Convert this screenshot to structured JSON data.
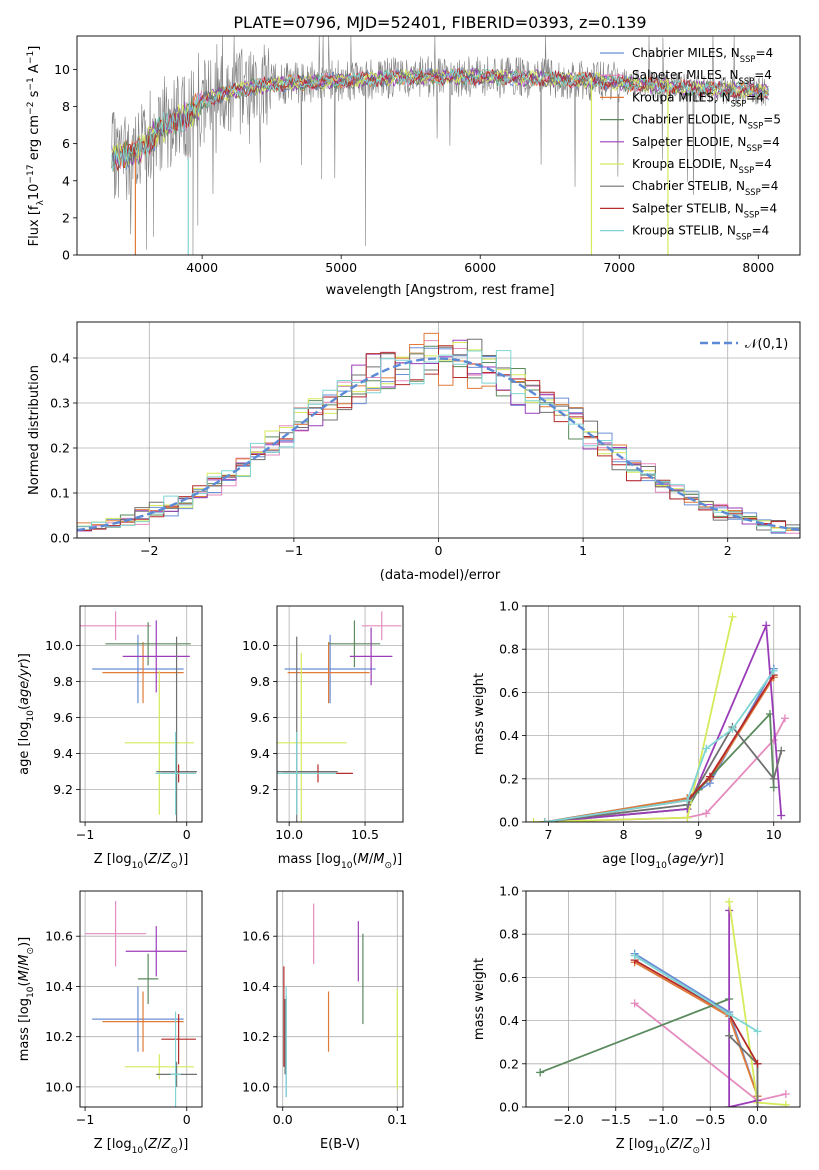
{
  "title": "PLATE=0796, MJD=52401, FIBERID=0393, z=0.139",
  "colors": {
    "Chabrier MILES": "#6b8fd6",
    "Salpeter MILES": "#e58bbf",
    "Kroupa MILES": "#e07b39",
    "Chabrier ELODIE": "#5a8a5e",
    "Salpeter ELODIE": "#9b3db8",
    "Kroupa ELODIE": "#d6ea5a",
    "Chabrier STELIB": "#707070",
    "Salpeter STELIB": "#b52a2a",
    "Kroupa STELIB": "#7fd4d4"
  },
  "chart_data": [
    {
      "id": "spectrum",
      "type": "line",
      "xlabel": "wavelength [Angstrom, rest frame]",
      "ylabel": "Flux [f_λ10^-17 erg cm^-2 s^-1 A^-1]",
      "xlim": [
        3100,
        8300
      ],
      "ylim": [
        0,
        11.8
      ],
      "xticks": [
        4000,
        5000,
        6000,
        7000,
        8000
      ],
      "yticks": [
        0,
        2,
        4,
        6,
        8,
        10
      ],
      "legend_position": "right",
      "legend": [
        {
          "name": "Chabrier MILES",
          "nssp": "4"
        },
        {
          "name": "Salpeter MILES",
          "nssp": "4"
        },
        {
          "name": "Kroupa MILES",
          "nssp": "4"
        },
        {
          "name": "Chabrier ELODIE",
          "nssp": "5"
        },
        {
          "name": "Salpeter ELODIE",
          "nssp": "4"
        },
        {
          "name": "Kroupa ELODIE",
          "nssp": "4"
        },
        {
          "name": "Chabrier STELIB",
          "nssp": "4"
        },
        {
          "name": "Salpeter STELIB",
          "nssp": "4"
        },
        {
          "name": "Kroupa STELIB",
          "nssp": "4"
        }
      ],
      "data_envelope": {
        "x": [
          3350,
          3500,
          3600,
          3700,
          3800,
          3900,
          4000,
          4200,
          4500,
          5000,
          5500,
          6000,
          6500,
          7000,
          7500,
          8050
        ],
        "y": [
          5.3,
          5.4,
          6.0,
          6.8,
          7.2,
          7.5,
          8.3,
          8.8,
          9.2,
          9.4,
          9.6,
          9.6,
          9.5,
          9.3,
          9.0,
          8.8
        ]
      },
      "model_cut_x": [
        3520,
        3900,
        6800,
        7350
      ]
    },
    {
      "id": "residuals",
      "type": "line",
      "xlabel": "(data-model)/error",
      "ylabel": "Normed distribution",
      "xlim": [
        -2.5,
        2.5
      ],
      "ylim": [
        0,
        0.48
      ],
      "xticks": [
        -2,
        -1,
        0,
        1,
        2
      ],
      "yticks": [
        0,
        0.1,
        0.2,
        0.3,
        0.4
      ],
      "legend_position": "top-right",
      "reference_curve": "𝒩(0,1)",
      "hist_bin_width": 0.1
    },
    {
      "id": "age-vs-Z",
      "type": "scatter",
      "xlabel": "Z [log10(Z/Z⊙)]",
      "ylabel": "age  [log10(age/yr)]",
      "xlim": [
        -1.05,
        0.15
      ],
      "ylim": [
        9.02,
        10.22
      ],
      "xticks": [
        -1,
        0
      ],
      "yticks": [
        9.2,
        9.4,
        9.6,
        9.8,
        10.0
      ],
      "points": [
        {
          "series": "Chabrier MILES",
          "x": -0.48,
          "y": 9.87,
          "xerr": 0.45,
          "yerr": 0.19
        },
        {
          "series": "Salpeter MILES",
          "x": -0.7,
          "y": 10.11,
          "xerr": 0.35,
          "yerr": 0.08
        },
        {
          "series": "Kroupa MILES",
          "x": -0.43,
          "y": 9.85,
          "xerr": 0.4,
          "yerr": 0.17
        },
        {
          "series": "Chabrier ELODIE",
          "x": -0.38,
          "y": 10.01,
          "xerr": 0.42,
          "yerr": 0.12
        },
        {
          "series": "Salpeter ELODIE",
          "x": -0.3,
          "y": 9.94,
          "xerr": 0.33,
          "yerr": 0.2
        },
        {
          "series": "Kroupa ELODIE",
          "x": -0.27,
          "y": 9.46,
          "xerr": 0.34,
          "yerr": 0.4
        },
        {
          "series": "Chabrier STELIB",
          "x": -0.1,
          "y": 9.3,
          "xerr": 0.2,
          "yerr": 0.75
        },
        {
          "series": "Salpeter STELIB",
          "x": -0.08,
          "y": 9.29,
          "xerr": 0.17,
          "yerr": 0.05
        },
        {
          "series": "Kroupa STELIB",
          "x": -0.11,
          "y": 9.29,
          "xerr": 0.2,
          "yerr": 0.23
        }
      ]
    },
    {
      "id": "age-vs-mass",
      "type": "scatter",
      "xlabel": "mass [log10(M/M⊙)]",
      "ylabel": "",
      "xlim": [
        9.92,
        10.75
      ],
      "ylim": [
        9.02,
        10.22
      ],
      "xticks": [
        10.0,
        10.5
      ],
      "yticks": [
        9.2,
        9.4,
        9.6,
        9.8,
        10.0
      ],
      "points": [
        {
          "series": "Chabrier MILES",
          "x": 10.27,
          "y": 9.87,
          "xerr": 0.3,
          "yerr": 0.19
        },
        {
          "series": "Salpeter MILES",
          "x": 10.61,
          "y": 10.11,
          "xerr": 0.13,
          "yerr": 0.08
        },
        {
          "series": "Kroupa MILES",
          "x": 10.26,
          "y": 9.85,
          "xerr": 0.27,
          "yerr": 0.17
        },
        {
          "series": "Chabrier ELODIE",
          "x": 10.43,
          "y": 10.01,
          "xerr": 0.17,
          "yerr": 0.13
        },
        {
          "series": "Salpeter ELODIE",
          "x": 10.54,
          "y": 9.94,
          "xerr": 0.14,
          "yerr": 0.16
        },
        {
          "series": "Kroupa ELODIE",
          "x": 10.08,
          "y": 9.46,
          "xerr": 0.3,
          "yerr": 0.5
        },
        {
          "series": "Chabrier STELIB",
          "x": 10.05,
          "y": 9.3,
          "xerr": 0.27,
          "yerr": 0.75
        },
        {
          "series": "Salpeter STELIB",
          "x": 10.19,
          "y": 9.29,
          "xerr": 0.23,
          "yerr": 0.05
        },
        {
          "series": "Kroupa STELIB",
          "x": 10.05,
          "y": 9.29,
          "xerr": 0.26,
          "yerr": 0.23
        }
      ]
    },
    {
      "id": "massweight-vs-age",
      "type": "line",
      "xlabel": "age  [log10(age/yr)]",
      "ylabel": "mass weight",
      "xlim": [
        6.7,
        10.35
      ],
      "ylim": [
        0,
        1.0
      ],
      "xticks": [
        7,
        8,
        9,
        10
      ],
      "yticks": [
        0.0,
        0.2,
        0.4,
        0.6,
        0.8,
        1.0
      ],
      "series": [
        {
          "name": "Chabrier MILES",
          "x": [
            6.95,
            8.85,
            9.15,
            10.0
          ],
          "y": [
            0.0,
            0.11,
            0.18,
            0.71
          ]
        },
        {
          "name": "Salpeter MILES",
          "x": [
            6.95,
            8.85,
            9.1,
            10.0,
            10.15
          ],
          "y": [
            0.0,
            0.02,
            0.04,
            0.38,
            0.48
          ]
        },
        {
          "name": "Kroupa MILES",
          "x": [
            6.95,
            8.85,
            9.15,
            10.0
          ],
          "y": [
            0.0,
            0.11,
            0.2,
            0.67
          ]
        },
        {
          "name": "Chabrier ELODIE",
          "x": [
            6.95,
            8.85,
            9.0,
            9.95,
            10.0
          ],
          "y": [
            0.0,
            0.06,
            0.15,
            0.5,
            0.16
          ]
        },
        {
          "name": "Salpeter ELODIE",
          "x": [
            6.95,
            8.85,
            9.9,
            10.1
          ],
          "y": [
            0.0,
            0.06,
            0.91,
            0.03
          ]
        },
        {
          "name": "Kroupa ELODIE",
          "x": [
            6.8,
            8.85,
            9.45
          ],
          "y": [
            0.0,
            0.02,
            0.95
          ]
        },
        {
          "name": "Chabrier STELIB",
          "x": [
            6.95,
            8.85,
            9.45,
            10.0,
            10.1
          ],
          "y": [
            0.0,
            0.08,
            0.44,
            0.2,
            0.33
          ]
        },
        {
          "name": "Salpeter STELIB",
          "x": [
            6.95,
            8.85,
            9.15,
            10.0
          ],
          "y": [
            0.0,
            0.1,
            0.21,
            0.68
          ]
        },
        {
          "name": "Kroupa STELIB",
          "x": [
            6.95,
            8.85,
            9.1,
            9.45,
            10.0
          ],
          "y": [
            0.0,
            0.1,
            0.34,
            0.43,
            0.7
          ]
        }
      ]
    },
    {
      "id": "mass-vs-Z",
      "type": "scatter",
      "xlabel": "Z [log10(Z/Z⊙)]",
      "ylabel": "mass [log10(M/M⊙)]",
      "xlim": [
        -1.05,
        0.15
      ],
      "ylim": [
        9.92,
        10.78
      ],
      "xticks": [
        -1,
        0
      ],
      "yticks": [
        10.0,
        10.2,
        10.4,
        10.6
      ],
      "points": [
        {
          "series": "Chabrier MILES",
          "x": -0.48,
          "y": 10.27,
          "xerr": 0.45,
          "yerr": 0.13
        },
        {
          "series": "Salpeter MILES",
          "x": -0.7,
          "y": 10.61,
          "xerr": 0.3,
          "yerr": 0.13
        },
        {
          "series": "Kroupa MILES",
          "x": -0.43,
          "y": 10.26,
          "xerr": 0.4,
          "yerr": 0.12
        },
        {
          "series": "Chabrier ELODIE",
          "x": -0.38,
          "y": 10.43,
          "xerr": 0.1,
          "yerr": 0.1
        },
        {
          "series": "Salpeter ELODIE",
          "x": -0.3,
          "y": 10.54,
          "xerr": 0.3,
          "yerr": 0.1
        },
        {
          "series": "Kroupa ELODIE",
          "x": -0.27,
          "y": 10.08,
          "xerr": 0.34,
          "yerr": 0.05
        },
        {
          "series": "Chabrier STELIB",
          "x": -0.1,
          "y": 10.05,
          "xerr": 0.2,
          "yerr": 0.05
        },
        {
          "series": "Salpeter STELIB",
          "x": -0.08,
          "y": 10.19,
          "xerr": 0.17,
          "yerr": 0.1
        },
        {
          "series": "Kroupa STELIB",
          "x": -0.11,
          "y": 10.05,
          "xerr": 0.05,
          "yerr": 0.25
        }
      ]
    },
    {
      "id": "mass-vs-ebv",
      "type": "scatter",
      "xlabel": "E(B-V)",
      "ylabel": "",
      "xlim": [
        -0.005,
        0.105
      ],
      "ylim": [
        9.92,
        10.78
      ],
      "xticks": [
        0.0,
        0.1
      ],
      "yticks": [
        10.0,
        10.2,
        10.4,
        10.6
      ],
      "points": [
        {
          "series": "Chabrier MILES",
          "x": 0.003,
          "y": 10.16,
          "yerr": 0.2
        },
        {
          "series": "Salpeter MILES",
          "x": 0.027,
          "y": 10.61,
          "yerr": 0.12
        },
        {
          "series": "Kroupa MILES",
          "x": 0.04,
          "y": 10.26,
          "yerr": 0.12
        },
        {
          "series": "Chabrier ELODIE",
          "x": 0.07,
          "y": 10.43,
          "yerr": 0.18
        },
        {
          "series": "Salpeter ELODIE",
          "x": 0.066,
          "y": 10.54,
          "yerr": 0.12
        },
        {
          "series": "Kroupa ELODIE",
          "x": 0.1,
          "y": 10.19,
          "yerr": 0.2
        },
        {
          "series": "Chabrier STELIB",
          "x": 0.002,
          "y": 10.2,
          "yerr": 0.15
        },
        {
          "series": "Salpeter STELIB",
          "x": 0.001,
          "y": 10.28,
          "yerr": 0.2
        },
        {
          "series": "Kroupa STELIB",
          "x": 0.003,
          "y": 10.18,
          "yerr": 0.22
        }
      ]
    },
    {
      "id": "massweight-vs-Z",
      "type": "line",
      "xlabel": "Z [log10(Z/Z⊙)]",
      "ylabel": "mass weight",
      "xlim": [
        -2.45,
        0.45
      ],
      "ylim": [
        0,
        1.0
      ],
      "xticks": [
        -2.0,
        -1.5,
        -1.0,
        -0.5,
        0.0
      ],
      "yticks": [
        0.0,
        0.2,
        0.4,
        0.6,
        0.8,
        1.0
      ],
      "series": [
        {
          "name": "Chabrier MILES",
          "x": [
            -1.3,
            -0.3,
            0.0
          ],
          "y": [
            0.71,
            0.44,
            0.05
          ]
        },
        {
          "name": "Salpeter MILES",
          "x": [
            -1.3,
            0.0,
            0.3
          ],
          "y": [
            0.48,
            0.03,
            0.06
          ]
        },
        {
          "name": "Kroupa MILES",
          "x": [
            -1.3,
            -0.3,
            0.0
          ],
          "y": [
            0.67,
            0.42,
            0.05
          ]
        },
        {
          "name": "Chabrier ELODIE",
          "x": [
            -2.3,
            -0.3
          ],
          "y": [
            0.16,
            0.5
          ]
        },
        {
          "name": "Salpeter ELODIE",
          "x": [
            -0.3,
            -0.3,
            0.0
          ],
          "y": [
            0.91,
            0.0,
            0.03
          ]
        },
        {
          "name": "Kroupa ELODIE",
          "x": [
            -0.3,
            0.0,
            0.3
          ],
          "y": [
            0.95,
            0.02,
            0.01
          ]
        },
        {
          "name": "Chabrier STELIB",
          "x": [
            -0.3,
            0.0,
            0.0
          ],
          "y": [
            0.33,
            0.2,
            0.0
          ]
        },
        {
          "name": "Salpeter STELIB",
          "x": [
            -1.3,
            -0.3,
            0.0
          ],
          "y": [
            0.68,
            0.43,
            0.2
          ]
        },
        {
          "name": "Kroupa STELIB",
          "x": [
            -1.3,
            -0.3,
            0.0
          ],
          "y": [
            0.7,
            0.43,
            0.35
          ]
        }
      ]
    }
  ]
}
